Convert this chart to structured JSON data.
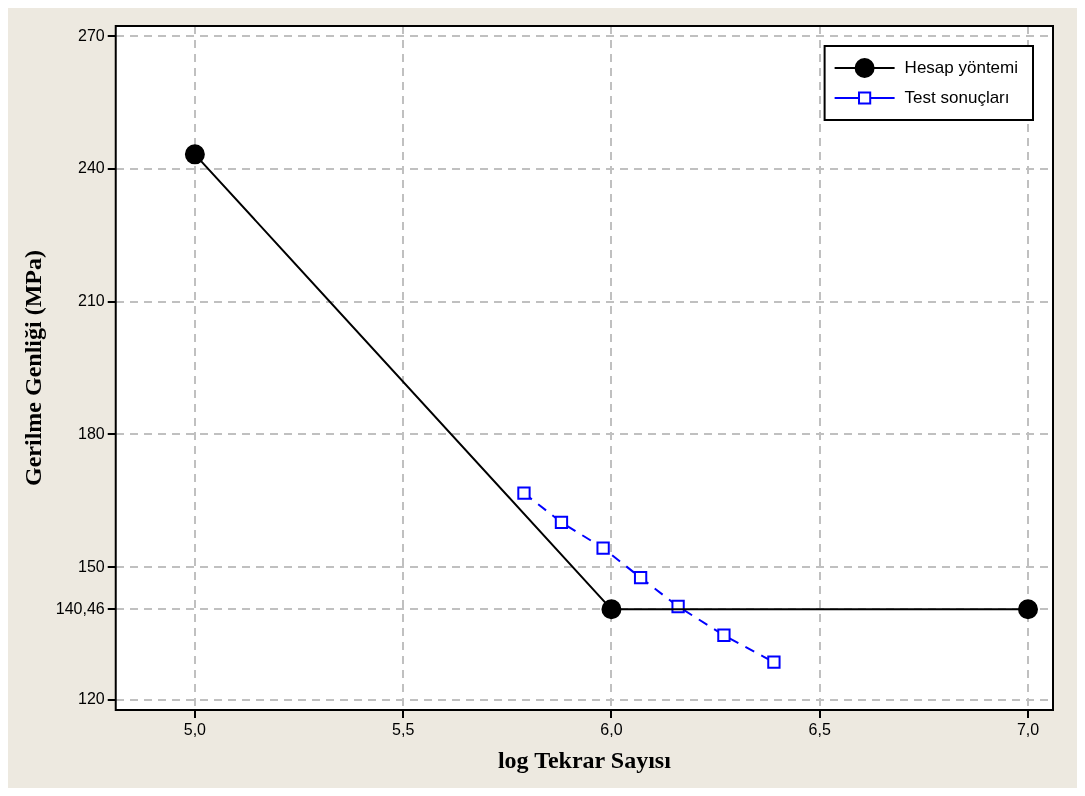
{
  "chart_data": {
    "type": "line",
    "xlabel": "log Tekrar Sayısı",
    "ylabel": "Gerilme Genliği (MPa)",
    "xlim": [
      4.81,
      7.06
    ],
    "ylim": [
      117.7,
      272.3
    ],
    "xticks": [
      {
        "value": 5,
        "label": "5,0"
      },
      {
        "value": 5.5,
        "label": "5,5"
      },
      {
        "value": 6,
        "label": "6,0"
      },
      {
        "value": 6.5,
        "label": "6,5"
      },
      {
        "value": 7,
        "label": "7,0"
      }
    ],
    "yticks": [
      120,
      {
        "value": 140.46,
        "label": "140,46"
      },
      150,
      180,
      210,
      240,
      270
    ],
    "grid": true,
    "legend": "top right",
    "series": [
      {
        "name": "Hesap yöntemi",
        "color": "#000000",
        "x": [
          5,
          6,
          7
        ],
        "values": [
          243.3,
          140.46,
          140.46
        ],
        "marker": "circle",
        "line_style": "solid"
      },
      {
        "name": "Test sonuçları",
        "color": "#0000ff",
        "x": [
          5.79,
          5.88,
          5.98,
          6.07,
          6.16,
          6.27,
          6.39
        ],
        "values": [
          166.7,
          160.1,
          154.3,
          147.6,
          141.1,
          134.6,
          128.5
        ],
        "marker": "square",
        "line_style": "dashed"
      }
    ]
  }
}
